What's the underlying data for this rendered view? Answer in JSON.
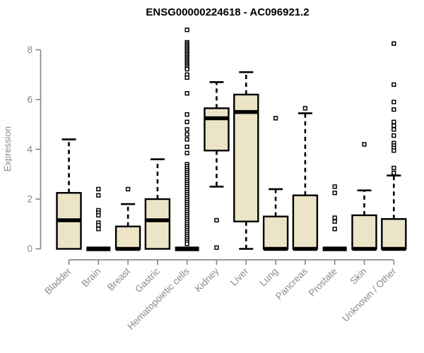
{
  "chart_data": {
    "type": "boxplot",
    "title": "ENSG00000224618 - AC096921.2",
    "ylabel": "Expression",
    "xlabel": "",
    "ylim": [
      0,
      9
    ],
    "yticks": [
      0,
      2,
      4,
      6,
      8
    ],
    "grid": false,
    "legend": "none",
    "x_tick_rotation": 45,
    "colors": {
      "box_fill": "#ECE4C6",
      "box_stroke": "#000000",
      "median": "#000000",
      "axis": "#8A8A8A",
      "tick_label": "#8A8A8A",
      "title": "#000000",
      "background": "#FFFFFF"
    },
    "categories": [
      "Bladder",
      "Brain",
      "Breast",
      "Gastric",
      "Hematopoietic cells",
      "Kidney",
      "Liver",
      "Lung",
      "Pancreas",
      "Prostate",
      "Skin",
      "Unknown / Other"
    ],
    "boxes": [
      {
        "label": "Bladder",
        "whisker_low": 0,
        "q1": 0,
        "median": 1.15,
        "q3": 2.25,
        "whisker_high": 4.4,
        "outliers": []
      },
      {
        "label": "Brain",
        "whisker_low": 0,
        "q1": 0,
        "median": 0,
        "q3": 0,
        "whisker_high": 0,
        "outliers": [
          2.4,
          2.15,
          1.55,
          1.45,
          1.35,
          1.05,
          0.95,
          0.8
        ]
      },
      {
        "label": "Breast",
        "whisker_low": 0,
        "q1": 0,
        "median": 0,
        "q3": 0.9,
        "whisker_high": 1.8,
        "outliers": [
          2.4
        ]
      },
      {
        "label": "Gastric",
        "whisker_low": 0,
        "q1": 0,
        "median": 1.15,
        "q3": 2.0,
        "whisker_high": 3.6,
        "outliers": []
      },
      {
        "label": "Hematopoietic cells",
        "whisker_low": 0,
        "q1": 0,
        "median": 0,
        "q3": 0,
        "whisker_high": 0,
        "outliers": [
          8.8,
          8.3,
          8.24,
          8.18,
          8.12,
          8.06,
          8.0,
          7.94,
          7.88,
          7.82,
          7.76,
          7.7,
          7.64,
          7.58,
          7.52,
          7.46,
          7.4,
          7.34,
          7.28,
          7.22,
          7.0,
          6.88,
          6.25,
          5.4,
          5.1,
          4.8,
          4.6,
          4.4,
          4.1,
          3.85,
          3.4,
          3.32,
          3.24,
          3.16,
          3.08,
          3.0,
          2.92,
          2.84,
          2.76,
          2.68,
          2.6,
          2.52,
          2.44,
          2.36,
          2.28,
          2.2,
          2.12,
          2.04,
          1.96,
          1.88,
          1.8,
          1.72,
          1.64,
          1.56,
          1.48,
          1.4,
          1.32,
          1.24,
          1.16,
          1.08,
          1.0,
          0.92,
          0.84,
          0.76,
          0.68,
          0.6,
          0.52,
          0.44,
          0.36,
          0.28,
          0.2
        ]
      },
      {
        "label": "Kidney",
        "whisker_low": 2.5,
        "q1": 3.95,
        "median": 5.25,
        "q3": 5.65,
        "whisker_high": 6.7,
        "outliers": [
          1.15,
          0.05
        ]
      },
      {
        "label": "Liver",
        "whisker_low": 0,
        "q1": 1.1,
        "median": 5.5,
        "q3": 6.2,
        "whisker_high": 7.1,
        "outliers": []
      },
      {
        "label": "Lung",
        "whisker_low": 0,
        "q1": 0,
        "median": 0,
        "q3": 1.3,
        "whisker_high": 2.4,
        "outliers": [
          5.25
        ]
      },
      {
        "label": "Pancreas",
        "whisker_low": 0,
        "q1": 0,
        "median": 0,
        "q3": 2.15,
        "whisker_high": 5.45,
        "outliers": [
          5.65
        ]
      },
      {
        "label": "Prostate",
        "whisker_low": 0,
        "q1": 0,
        "median": 0,
        "q3": 0,
        "whisker_high": 0,
        "outliers": [
          2.5,
          2.25,
          1.25,
          1.1,
          0.8
        ]
      },
      {
        "label": "Skin",
        "whisker_low": 0,
        "q1": 0,
        "median": 0,
        "q3": 1.35,
        "whisker_high": 2.35,
        "outliers": [
          4.2
        ]
      },
      {
        "label": "Unknown / Other",
        "whisker_low": 0,
        "q1": 0,
        "median": 0,
        "q3": 1.2,
        "whisker_high": 2.95,
        "outliers": [
          8.25,
          6.6,
          5.9,
          5.6,
          5.1,
          4.95,
          4.8,
          4.55,
          4.25,
          4.15,
          4.05,
          3.95,
          3.25,
          3.05
        ]
      }
    ]
  }
}
